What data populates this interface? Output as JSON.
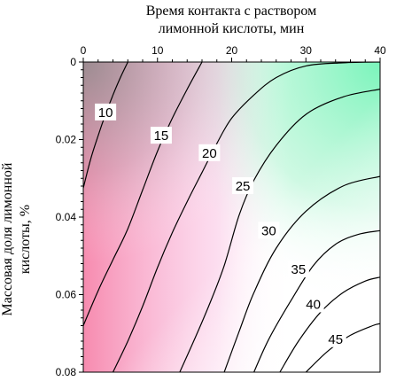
{
  "chart_data": {
    "type": "contour",
    "title": "",
    "xlabel_lines": [
      "Время контакта с раствором",
      "лимонной кислоты, мин"
    ],
    "ylabel_lines": [
      "Массовая доля лимонной",
      "кислоты, %"
    ],
    "x_axis_position": "top",
    "xlim": [
      0,
      40
    ],
    "ylim": [
      0,
      0.08
    ],
    "y_inverted": true,
    "x_ticks": [
      0,
      10,
      20,
      30,
      40
    ],
    "y_ticks": [
      0,
      0.02,
      0.04,
      0.06,
      0.08
    ],
    "x_tick_labels": [
      "0",
      "10",
      "20",
      "30",
      "40"
    ],
    "y_tick_labels": [
      "0",
      "0.02",
      "0.04",
      "0.06",
      "0.08"
    ],
    "grid": false,
    "legend": "none",
    "color_fill_note": "smooth background gradient: gray at top-left, pink along left edge, green/cyan along top-right, white toward bottom-right",
    "colors": {
      "pink": "#f46a98",
      "green": "#5cf0a6",
      "gray": "#9a9a9a",
      "line": "#000000"
    },
    "contours": [
      {
        "level": "10",
        "label_at": [
          3,
          0.013
        ],
        "points": [
          [
            0,
            0.0325
          ],
          [
            1,
            0.025
          ],
          [
            2,
            0.019
          ],
          [
            3,
            0.0135
          ],
          [
            4,
            0.0085
          ],
          [
            5,
            0.004
          ],
          [
            6,
            0
          ]
        ]
      },
      {
        "level": "15",
        "label_at": [
          10.5,
          0.019
        ],
        "points": [
          [
            0,
            0.068
          ],
          [
            2,
            0.059
          ],
          [
            4,
            0.051
          ],
          [
            6,
            0.043
          ],
          [
            8,
            0.033
          ],
          [
            10,
            0.023
          ],
          [
            12,
            0.0145
          ],
          [
            14,
            0.007
          ],
          [
            16,
            0
          ]
        ]
      },
      {
        "level": "20",
        "label_at": [
          17,
          0.0235
        ],
        "points": [
          [
            4,
            0.08
          ],
          [
            6,
            0.072
          ],
          [
            8,
            0.063
          ],
          [
            10,
            0.053
          ],
          [
            12,
            0.044
          ],
          [
            14,
            0.036
          ],
          [
            16,
            0.0285
          ],
          [
            18,
            0.021
          ],
          [
            20,
            0.0145
          ],
          [
            23,
            0.0085
          ],
          [
            26,
            0.004
          ],
          [
            30,
            0.001
          ],
          [
            35,
            0.0002
          ],
          [
            40,
            0
          ]
        ]
      },
      {
        "level": "25",
        "label_at": [
          21.5,
          0.032
        ],
        "points": [
          [
            13,
            0.08
          ],
          [
            15,
            0.0715
          ],
          [
            17,
            0.0625
          ],
          [
            19,
            0.0525
          ],
          [
            21,
            0.0395
          ],
          [
            23,
            0.0305
          ],
          [
            26,
            0.0215
          ],
          [
            30,
            0.0135
          ],
          [
            35,
            0.009
          ],
          [
            40,
            0.007
          ]
        ]
      },
      {
        "level": "30",
        "label_at": [
          25,
          0.0435
        ],
        "points": [
          [
            19,
            0.08
          ],
          [
            21,
            0.0695
          ],
          [
            23,
            0.0595
          ],
          [
            26,
            0.048
          ],
          [
            30,
            0.0385
          ],
          [
            35,
            0.032
          ],
          [
            40,
            0.0295
          ]
        ]
      },
      {
        "level": "35",
        "label_at": [
          29,
          0.0535
        ],
        "points": [
          [
            23,
            0.08
          ],
          [
            25,
            0.0715
          ],
          [
            28,
            0.0615
          ],
          [
            31,
            0.0525
          ],
          [
            34,
            0.047
          ],
          [
            37,
            0.0445
          ],
          [
            40,
            0.0435
          ]
        ]
      },
      {
        "level": "40",
        "label_at": [
          31,
          0.0625
        ],
        "points": [
          [
            26.5,
            0.08
          ],
          [
            29,
            0.072
          ],
          [
            32,
            0.0645
          ],
          [
            35,
            0.0595
          ],
          [
            38,
            0.0565
          ],
          [
            40,
            0.0555
          ]
        ]
      },
      {
        "level": "45",
        "label_at": [
          34,
          0.0715
        ],
        "points": [
          [
            30,
            0.08
          ],
          [
            33,
            0.0745
          ],
          [
            36,
            0.0705
          ],
          [
            39,
            0.068
          ],
          [
            40,
            0.0675
          ]
        ]
      }
    ]
  }
}
